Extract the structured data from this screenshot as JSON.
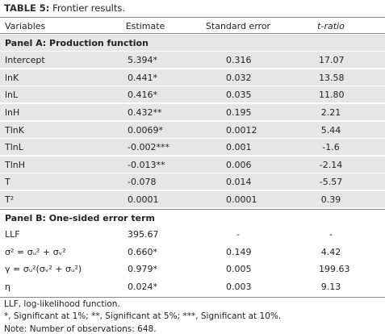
{
  "title": {
    "label": "TABLE 5:",
    "text": "Frontier results."
  },
  "table": {
    "header": [
      "Variables",
      "Estimate",
      "Standard error",
      "t-ratio"
    ],
    "panels": [
      {
        "title": "Panel A: Production function",
        "rows": [
          [
            "Intercept",
            "5.394*",
            "0.316",
            "17.07"
          ],
          [
            "lnK",
            "0.441*",
            "0.032",
            "13.58"
          ],
          [
            "lnL",
            "0.416*",
            "0.035",
            "11.80"
          ],
          [
            "lnH",
            "0.432**",
            "0.195",
            "2.21"
          ],
          [
            "TlnK",
            "0.0069*",
            "0.0012",
            "5.44"
          ],
          [
            "TlnL",
            "-0.002***",
            "0.001",
            "-1.6"
          ],
          [
            "TlnH",
            "-0.013**",
            "0.006",
            "-2.14"
          ],
          [
            "T",
            "-0.078",
            "0.014",
            "-5.57"
          ],
          [
            "T²",
            "0.0001",
            "0.0001",
            "0.39"
          ]
        ]
      },
      {
        "title": "Panel B: One-sided error term",
        "rows": [
          [
            "LLF",
            "395.67",
            "-",
            "-"
          ],
          [
            "σ² = σᵤ² + σᵥ²",
            "0.660*",
            "0.149",
            "4.42"
          ],
          [
            "γ = σᵤ²(σᵥ² + σᵤ²)",
            "0.979*",
            "0.005",
            "199.63"
          ],
          [
            "η",
            "0.024*",
            "0.003",
            "9.13"
          ]
        ]
      }
    ]
  },
  "notes": [
    "LLF, log-likelihood function.",
    "*, Significant at 1%; **, Significant at 5%; ***, Significant at 10%.",
    "Note: Number of observations: 648."
  ]
}
